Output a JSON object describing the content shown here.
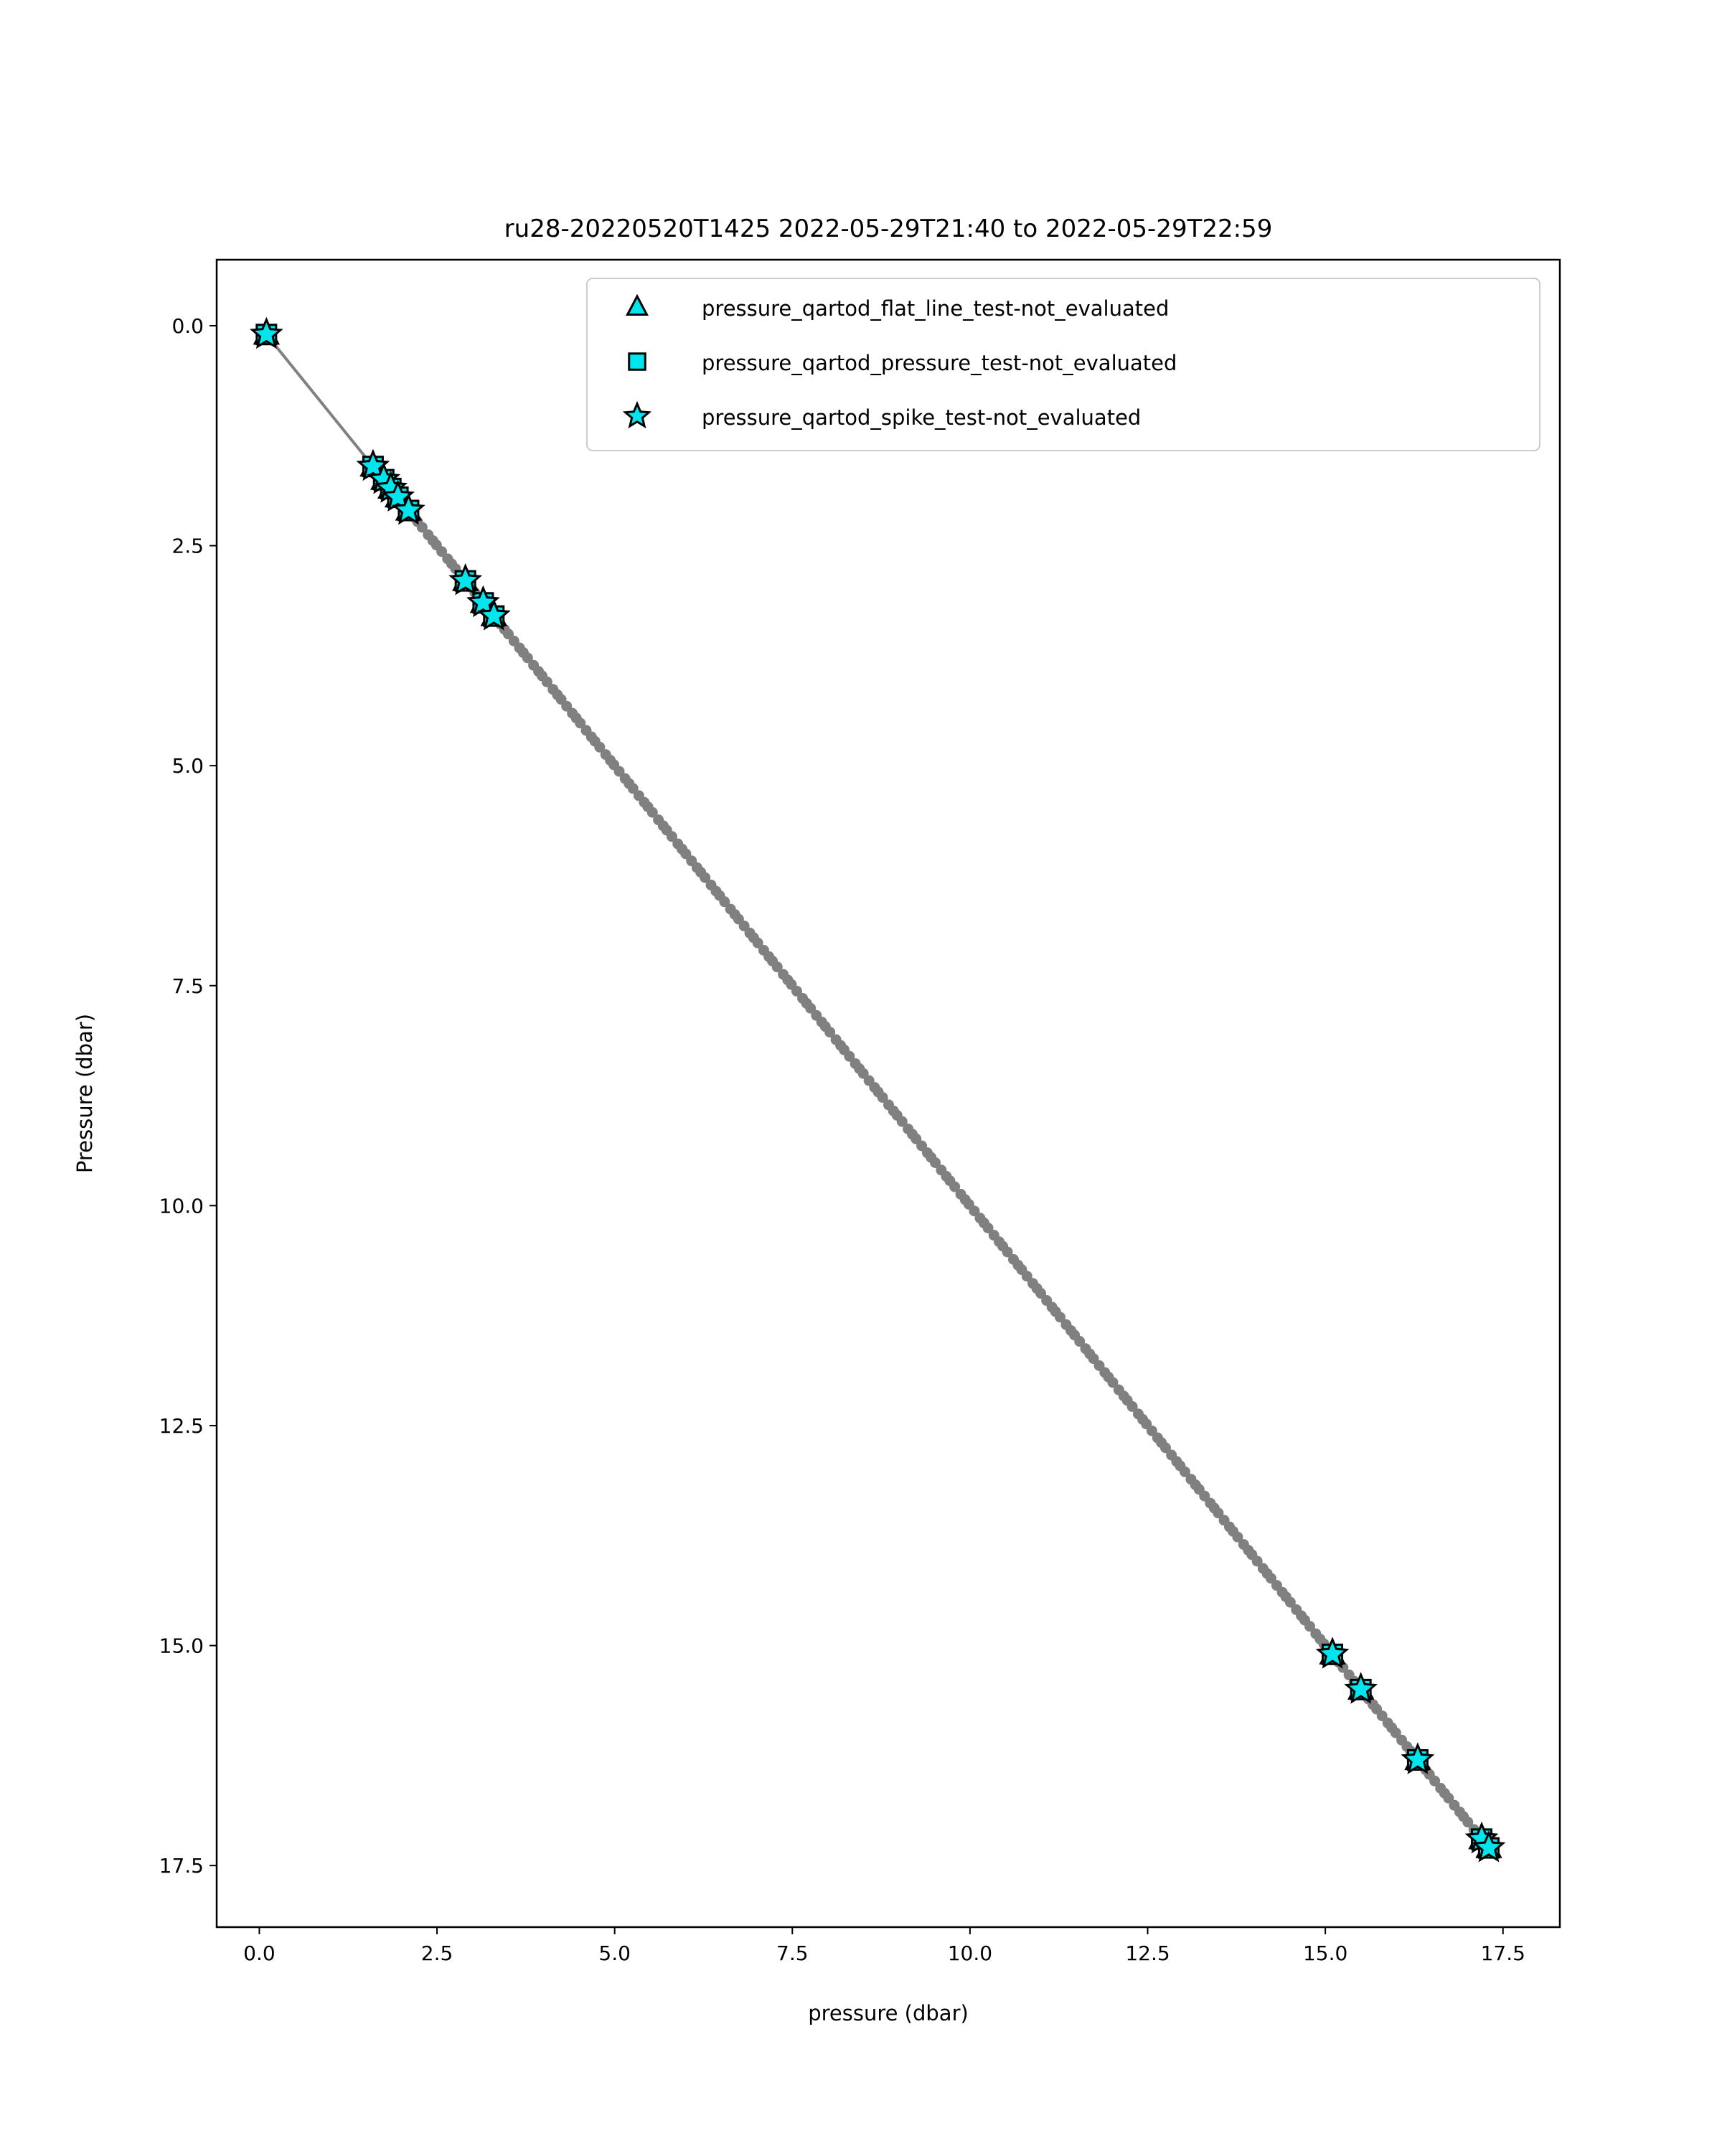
{
  "chart_data": {
    "type": "scatter",
    "title": "ru28-20220520T1425 2022-05-29T21:40 to 2022-05-29T22:59",
    "xlabel": "pressure (dbar)",
    "ylabel": "Pressure (dbar)",
    "xlim": [
      -0.6,
      18.3
    ],
    "ylim": [
      18.2,
      -0.75
    ],
    "y_inverted": true,
    "grid": false,
    "legend_placement": "top-right",
    "x_ticks": [
      "0.0",
      "2.5",
      "5.0",
      "7.5",
      "10.0",
      "12.5",
      "15.0",
      "17.5"
    ],
    "y_ticks": [
      "0.0",
      "2.5",
      "5.0",
      "7.5",
      "10.0",
      "12.5",
      "15.0",
      "17.5"
    ],
    "profile": {
      "color": "#808080",
      "note_points": [
        0.1,
        17.3
      ]
    },
    "series": [
      {
        "name": "pressure_qartod_flat_line_test-not_evaluated",
        "marker": "triangle",
        "color": "#00e5ee",
        "x": [
          0.1,
          1.6,
          1.75,
          1.85,
          1.95,
          2.1,
          2.9,
          3.15,
          3.3,
          15.1,
          15.5,
          16.3,
          17.2,
          17.3
        ],
        "y": [
          0.1,
          1.6,
          1.75,
          1.85,
          1.95,
          2.1,
          2.9,
          3.15,
          3.3,
          15.1,
          15.5,
          16.3,
          17.2,
          17.3
        ]
      },
      {
        "name": "pressure_qartod_pressure_test-not_evaluated",
        "marker": "square",
        "color": "#00e5ee",
        "x": [
          0.1,
          1.6,
          1.75,
          1.85,
          1.95,
          2.1,
          2.9,
          3.15,
          3.3,
          15.1,
          15.5,
          16.3,
          17.2,
          17.3
        ],
        "y": [
          0.1,
          1.6,
          1.75,
          1.85,
          1.95,
          2.1,
          2.9,
          3.15,
          3.3,
          15.1,
          15.5,
          16.3,
          17.2,
          17.3
        ]
      },
      {
        "name": "pressure_qartod_spike_test-not_evaluated",
        "marker": "star",
        "color": "#00e5ee",
        "x": [
          0.1,
          1.6,
          1.75,
          1.85,
          1.95,
          2.1,
          2.9,
          3.15,
          3.3,
          15.1,
          15.5,
          16.3,
          17.2,
          17.3
        ],
        "y": [
          0.1,
          1.6,
          1.75,
          1.85,
          1.95,
          2.1,
          2.9,
          3.15,
          3.3,
          15.1,
          15.5,
          16.3,
          17.2,
          17.3
        ]
      }
    ]
  }
}
